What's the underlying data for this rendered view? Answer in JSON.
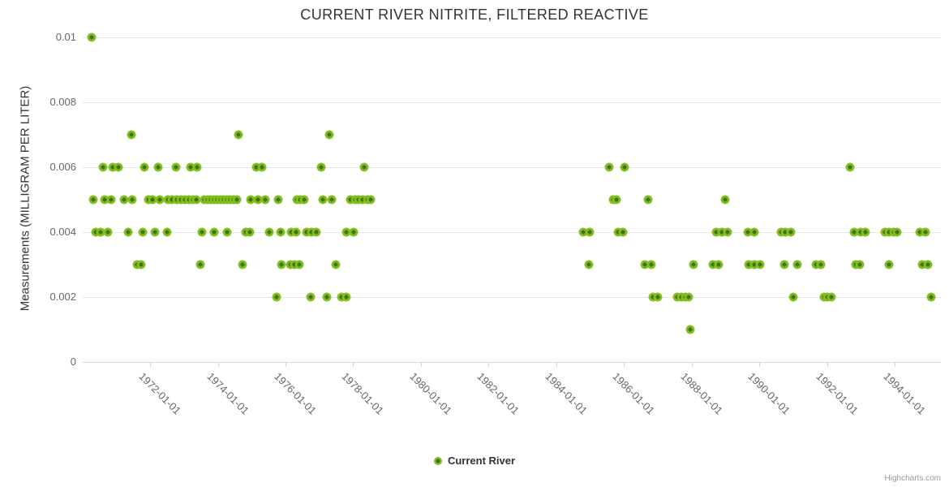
{
  "title": "CURRENT RIVER NITRITE, FILTERED REACTIVE",
  "legend": {
    "label": "Current River"
  },
  "credits": "Highcharts.com",
  "colors": {
    "marker_outer": "#82bc1e",
    "marker_inner": "#3c730a",
    "gridline": "#e6e6e6",
    "axis_line": "#ccd6eb",
    "title_text": "#333333",
    "tick_text": "#666666"
  },
  "chart_data": {
    "type": "scatter",
    "title": "CURRENT RIVER NITRITE, FILTERED REACTIVE",
    "xlabel": "",
    "ylabel": "Measurements (MILLIGRAM PER LITER)",
    "grid": "horizontal-only",
    "legend_position": "bottom-center",
    "xlim": [
      1970.01,
      1995.36
    ],
    "ylim": [
      0,
      0.01
    ],
    "x_ticks": [
      {
        "year": 1972,
        "label": "1972-01-01"
      },
      {
        "year": 1974,
        "label": "1974-01-01"
      },
      {
        "year": 1976,
        "label": "1976-01-01"
      },
      {
        "year": 1978,
        "label": "1978-01-01"
      },
      {
        "year": 1980,
        "label": "1980-01-01"
      },
      {
        "year": 1982,
        "label": "1982-01-01"
      },
      {
        "year": 1984,
        "label": "1984-01-01"
      },
      {
        "year": 1986,
        "label": "1986-01-01"
      },
      {
        "year": 1988,
        "label": "1988-01-01"
      },
      {
        "year": 1990,
        "label": "1990-01-01"
      },
      {
        "year": 1992,
        "label": "1992-01-01"
      },
      {
        "year": 1994,
        "label": "1994-01-01"
      }
    ],
    "y_ticks": [
      {
        "value": 0,
        "label": "0"
      },
      {
        "value": 0.002,
        "label": "0.002"
      },
      {
        "value": 0.004,
        "label": "0.004"
      },
      {
        "value": 0.006,
        "label": "0.006"
      },
      {
        "value": 0.008,
        "label": "0.008"
      },
      {
        "value": 0.01,
        "label": "0.01"
      }
    ],
    "series": [
      {
        "name": "Current River",
        "value_groups": [
          {
            "value": 0.01,
            "years": [
              1970.27
            ]
          },
          {
            "value": 0.007,
            "years": [
              1971.45,
              1974.61,
              1977.3
            ]
          },
          {
            "value": 0.006,
            "years": [
              1970.61,
              1970.9,
              1971.07,
              1971.83,
              1972.24,
              1972.77,
              1973.2,
              1973.39,
              1975.14,
              1975.31,
              1977.06,
              1978.33,
              1985.56,
              1986.02,
              1992.68
            ]
          },
          {
            "value": 0.005,
            "years": [
              1970.32,
              1970.66,
              1970.85,
              1971.23,
              1971.47,
              1971.95,
              1972.07,
              1972.29,
              1972.53,
              1972.65,
              1972.79,
              1972.91,
              1973.03,
              1973.15,
              1973.27,
              1973.37,
              1973.61,
              1973.7,
              1973.8,
              1973.89,
              1973.99,
              1974.08,
              1974.18,
              1974.28,
              1974.37,
              1974.47,
              1974.56,
              1974.97,
              1975.19,
              1975.4,
              1975.79,
              1976.34,
              1976.43,
              1976.55,
              1977.1,
              1977.37,
              1977.92,
              1978.06,
              1978.16,
              1978.28,
              1978.42,
              1978.52,
              1985.68,
              1985.78,
              1986.71,
              1988.99
            ]
          },
          {
            "value": 0.004,
            "years": [
              1970.39,
              1970.54,
              1970.75,
              1971.35,
              1971.78,
              1972.14,
              1972.5,
              1973.53,
              1973.89,
              1974.28,
              1974.83,
              1974.95,
              1975.52,
              1975.86,
              1976.17,
              1976.31,
              1976.63,
              1976.77,
              1976.91,
              1977.8,
              1978.02,
              1984.8,
              1984.99,
              1985.83,
              1985.97,
              1988.73,
              1988.89,
              1989.06,
              1989.66,
              1989.85,
              1990.64,
              1990.76,
              1990.93,
              1992.8,
              1992.99,
              1993.14,
              1993.71,
              1993.83,
              1993.97,
              1994.07,
              1994.74,
              1994.91
            ]
          },
          {
            "value": 0.003,
            "years": [
              1971.62,
              1971.74,
              1973.49,
              1974.73,
              1975.88,
              1976.15,
              1976.27,
              1976.41,
              1977.49,
              1984.96,
              1986.62,
              1986.81,
              1988.06,
              1988.63,
              1988.8,
              1989.68,
              1989.85,
              1990.02,
              1990.74,
              1991.12,
              1991.67,
              1991.82,
              1992.85,
              1992.97,
              1993.83,
              1994.81,
              1994.98
            ]
          },
          {
            "value": 0.002,
            "years": [
              1975.74,
              1976.74,
              1977.22,
              1977.66,
              1977.8,
              1986.86,
              1987.0,
              1987.58,
              1987.7,
              1987.82,
              1987.91,
              1991.0,
              1991.91,
              1992.01,
              1992.13,
              1995.08
            ]
          },
          {
            "value": 0.001,
            "years": [
              1987.96
            ]
          }
        ]
      }
    ]
  }
}
